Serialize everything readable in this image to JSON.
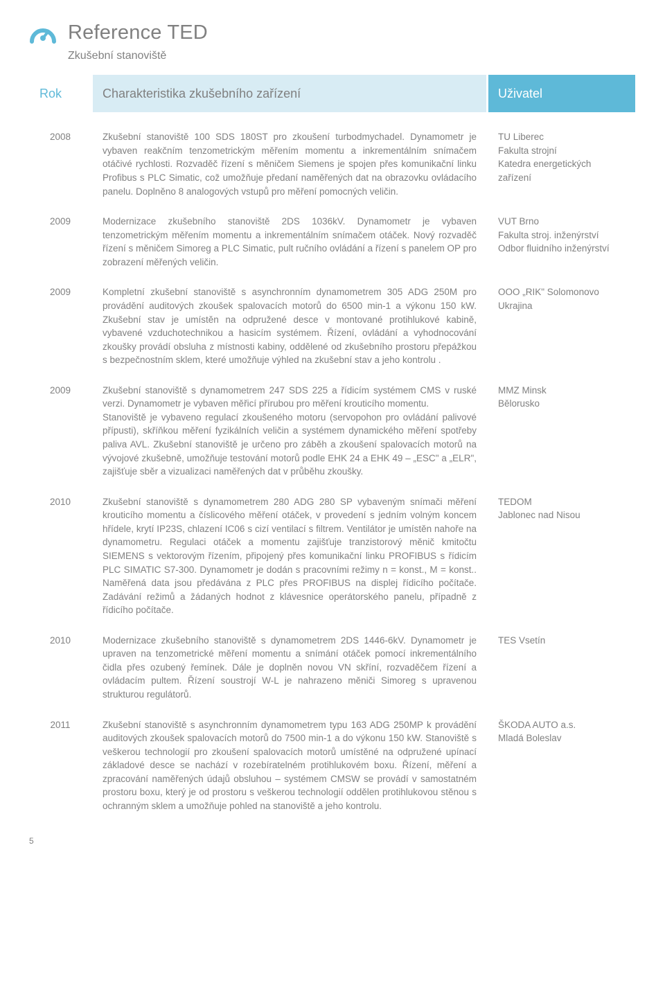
{
  "header": {
    "title": "Reference TED",
    "subtitle": "Zkušební stanoviště",
    "logo_color": "#5eb9d8"
  },
  "table": {
    "columns": {
      "year": "Rok",
      "desc": "Charakteristika zkušebního zařízení",
      "user": "Uživatel"
    },
    "header_styles": {
      "year_bg": "#ffffff",
      "year_fg": "#5fb9d8",
      "desc_bg": "#d8ecf4",
      "desc_fg": "#808080",
      "user_bg": "#5eb9d8",
      "user_fg": "#ffffff"
    },
    "rows": [
      {
        "year": "2008",
        "desc": "Zkušební stanoviště 100 SDS 180ST pro zkoušení turbodmychadel. Dynamometr je vybaven reakčním tenzometrickým měřením momentu a inkrementálním snímačem otáčivé rychlosti. Rozvaděč řízení s měničem Siemens je spojen přes komunikační linku Profibus s PLC Simatic, což umožňuje předaní naměřených dat na obrazovku ovládacího panelu. Doplněno 8 analogových vstupů pro měření pomocných veličin.",
        "user": "TU Liberec\nFakulta strojní\nKatedra energetických zařízení"
      },
      {
        "year": "2009",
        "desc": "Modernizace zkušebního stanoviště 2DS 1036kV. Dynamometr je vybaven tenzometrickým měřením momentu a inkrementálním snímačem otáček. Nový rozvaděč řízení s měničem Simoreg a PLC Simatic, pult ručního ovládání a řízení s panelem OP pro zobrazení měřených veličin.",
        "user": "VUT Brno\nFakulta stroj. inženýrství\nOdbor fluidního inženýrství"
      },
      {
        "year": "2009",
        "desc": "Kompletní zkušební stanoviště s asynchronním dynamometrem 305 ADG 250M pro provádění auditových zkoušek spalovacích motorů do 6500 min-1 a výkonu 150 kW. Zkušební stav je umístěn na odpružené desce v montované protihlukové kabině, vybavené vzduchotechnikou a hasicím systémem. Řízení, ovládání a vyhodnocování zkoušky provádí obsluha z místnosti kabiny, oddělené od zkušebního prostoru přepážkou s bezpečnostním sklem, které umožňuje výhled na zkušební stav a jeho kontrolu .",
        "user": "OOO „RIK\" Solomonovo\nUkrajina"
      },
      {
        "year": "2009",
        "desc": "Zkušební stanoviště s dynamometrem 247 SDS 225 a řídicím systémem CMS v ruské verzi. Dynamometr je vybaven měřicí přírubou pro měření krouticího momentu.\nStanoviště je vybaveno regulací zkoušeného motoru (servopohon pro ovládání palivové přípusti), skříňkou měření fyzikálních veličin a systémem dynamického měření spotřeby paliva AVL. Zkušební stanoviště je určeno pro záběh a zkoušení spalovacích motorů na vývojové zkušebně, umožňuje testování motorů podle EHK 24 a EHK 49 – „ESC\" a „ELR\", zajišťuje sběr a vizualizaci naměřených dat v průběhu zkoušky.",
        "user": "MMZ Minsk\nBělorusko"
      },
      {
        "year": "2010",
        "desc": "Zkušební stanoviště s dynamometrem 280 ADG 280 SP vybaveným snímači měření krouticího momentu a číslicového měření otáček, v provedení s jedním volným koncem hřídele, krytí IP23S, chlazení IC06 s cizí ventilací s filtrem. Ventilátor je umístěn nahoře na dynamometru. Regulaci otáček a momentu zajišťuje tranzistorový měnič kmitočtu SIEMENS s vektorovým řízením, připojený přes komunikační linku PROFIBUS s řídicím PLC SIMATIC S7-300. Dynamometr je dodán s pracovními režimy n = konst., M = konst.. Naměřená data jsou předávána z PLC přes PROFIBUS na displej řídicího počítače. Zadávání režimů a žádaných hodnot z klávesnice operátorského panelu, případně z řídicího počítače.",
        "user": "TEDOM\nJablonec nad Nisou"
      },
      {
        "year": "2010",
        "desc": "Modernizace zkušebního stanoviště s dynamometrem 2DS 1446-6kV. Dynamometr je upraven na tenzometrické měření momentu a snímání otáček pomocí inkrementálního čidla přes ozubený řemínek. Dále je doplněn novou VN skříní, rozvaděčem řízení a ovládacím pultem. Řízení soustrojí W-L je nahrazeno měniči Simoreg s upravenou strukturou regulátorů.",
        "user": "TES Vsetín"
      },
      {
        "year": "2011",
        "desc": "Zkušební stanoviště s asynchronním dynamometrem typu 163 ADG 250MP k provádění auditových zkoušek spalovacích motorů do 7500 min-1 a do výkonu 150 kW. Stanoviště s veškerou technologií pro zkoušení spalovacích motorů umístěné na odpružené upínací základové desce se nachází v rozebíratelném protihlukovém boxu. Řízení, měření a zpracování naměřených údajů obsluhou – systémem CMSW se provádí v samostatném prostoru boxu, který je od prostoru s veškerou technologií oddělen protihlukovou stěnou s ochranným sklem a umožňuje pohled na stanoviště a jeho kontrolu.",
        "user": "ŠKODA AUTO a.s.\nMladá Boleslav"
      }
    ]
  },
  "page_number": "5"
}
